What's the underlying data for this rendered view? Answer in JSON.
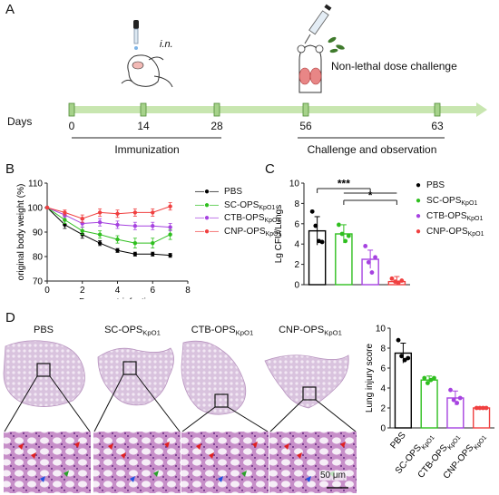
{
  "panels": {
    "a": "A",
    "b": "B",
    "c": "C",
    "d": "D"
  },
  "timeline": {
    "label": "Days",
    "route_label": "i.n.",
    "challenge_label": "Non-lethal dose challenge",
    "days": [
      "0",
      "14",
      "28",
      "56",
      "63"
    ],
    "phase1": "Immunization",
    "phase2": "Challenge and observation",
    "colors": {
      "arrow": "#c8e6b0",
      "tick_fill": "#a6d28a",
      "tick_stroke": "#4e8a34"
    }
  },
  "groups": [
    {
      "name": "PBS",
      "main": "PBS",
      "sub": "",
      "color": "#000000"
    },
    {
      "name": "SC-OPSKpO1",
      "main": "SC-OPS",
      "sub": "KpO1",
      "color": "#2fbf1f"
    },
    {
      "name": "CTB-OPSKpO1",
      "main": "CTB-OPS",
      "sub": "KpO1",
      "color": "#a642e0"
    },
    {
      "name": "CNP-OPSKpO1",
      "main": "CNP-OPS",
      "sub": "KpO1",
      "color": "#f04040"
    }
  ],
  "histology": {
    "titles": [
      {
        "main": "PBS",
        "sub": ""
      },
      {
        "main": "SC-OPS",
        "sub": "KpO1"
      },
      {
        "main": "CTB-OPS",
        "sub": "KpO1"
      },
      {
        "main": "CNP-OPS",
        "sub": "KpO1"
      }
    ],
    "scale_bar": "50 μm"
  },
  "chart_data": [
    {
      "type": "line",
      "xlabel": "Days post-infection",
      "ylabel": "original body weight (%)",
      "xlim": [
        0,
        8
      ],
      "ylim": [
        70,
        110
      ],
      "xticks": [
        0,
        2,
        4,
        6,
        8
      ],
      "yticks": [
        70,
        80,
        90,
        100,
        110
      ],
      "x": [
        0,
        1,
        2,
        3,
        4,
        5,
        6,
        7
      ],
      "series": [
        {
          "name": "PBS",
          "values": [
            100,
            93,
            89,
            85.5,
            82.5,
            81,
            81,
            80.5
          ],
          "err": [
            0,
            1.5,
            1.5,
            1,
            0.8,
            0.8,
            0.8,
            0.8
          ],
          "color": "#000000"
        },
        {
          "name": "SC-OPSKpO1",
          "values": [
            100,
            95,
            90.5,
            89,
            87,
            85.5,
            85.5,
            89
          ],
          "err": [
            0,
            1.5,
            1.5,
            1.5,
            1.5,
            2,
            2,
            2
          ],
          "color": "#2fbf1f"
        },
        {
          "name": "CTB-OPSKpO1",
          "values": [
            100,
            97,
            93.5,
            94,
            93,
            92.5,
            92.5,
            92
          ],
          "err": [
            0,
            1,
            1.5,
            1.5,
            1.5,
            1.5,
            1.5,
            1.5
          ],
          "color": "#a642e0"
        },
        {
          "name": "CNP-OPSKpO1",
          "values": [
            100,
            98,
            95.5,
            98,
            97.5,
            98,
            98,
            100.5
          ],
          "err": [
            0,
            1,
            1.5,
            1.5,
            1.5,
            1.5,
            1.5,
            1.5
          ],
          "color": "#f04040"
        }
      ]
    },
    {
      "type": "bar",
      "ylabel": "Lg CFU/Lungs",
      "ylim": [
        0,
        10
      ],
      "yticks": [
        0,
        2,
        4,
        6,
        8,
        10
      ],
      "categories": [
        "PBS",
        "SC-OPSKpO1",
        "CTB-OPSKpO1",
        "CNP-OPSKpO1"
      ],
      "values": [
        5.3,
        5.0,
        2.5,
        0.3
      ],
      "errors": [
        1.4,
        0.9,
        0.9,
        0.5
      ],
      "points": [
        [
          7.2,
          5.8,
          4.3,
          4.2
        ],
        [
          5.9,
          5.0,
          4.3,
          4.8
        ],
        [
          3.8,
          2.2,
          1.2,
          2.7
        ],
        [
          0.6,
          0.3,
          0.2,
          0.4
        ]
      ],
      "significance": [
        {
          "label": "***",
          "from": 0,
          "to": [
            1,
            2,
            3
          ]
        },
        {
          "label": "*",
          "from": 1,
          "to": [
            3
          ]
        }
      ]
    },
    {
      "type": "bar",
      "ylabel": "Lung injury score",
      "ylim": [
        0,
        10
      ],
      "yticks": [
        0,
        2,
        4,
        6,
        8,
        10
      ],
      "categories": [
        "PBS",
        "SC-OPSKpO1",
        "CTB-OPSKpO1",
        "CNP-OPSKpO1"
      ],
      "values": [
        7.5,
        4.8,
        3.0,
        2.0
      ],
      "errors": [
        1.0,
        0.4,
        0.7,
        0.0
      ],
      "points": [
        [
          8.8,
          7.2,
          6.8,
          7.0
        ],
        [
          5.0,
          4.5,
          4.8,
          5.0
        ],
        [
          3.8,
          2.8,
          2.5,
          3.0
        ],
        [
          2.0,
          2.0,
          2.0,
          2.0
        ]
      ]
    }
  ]
}
